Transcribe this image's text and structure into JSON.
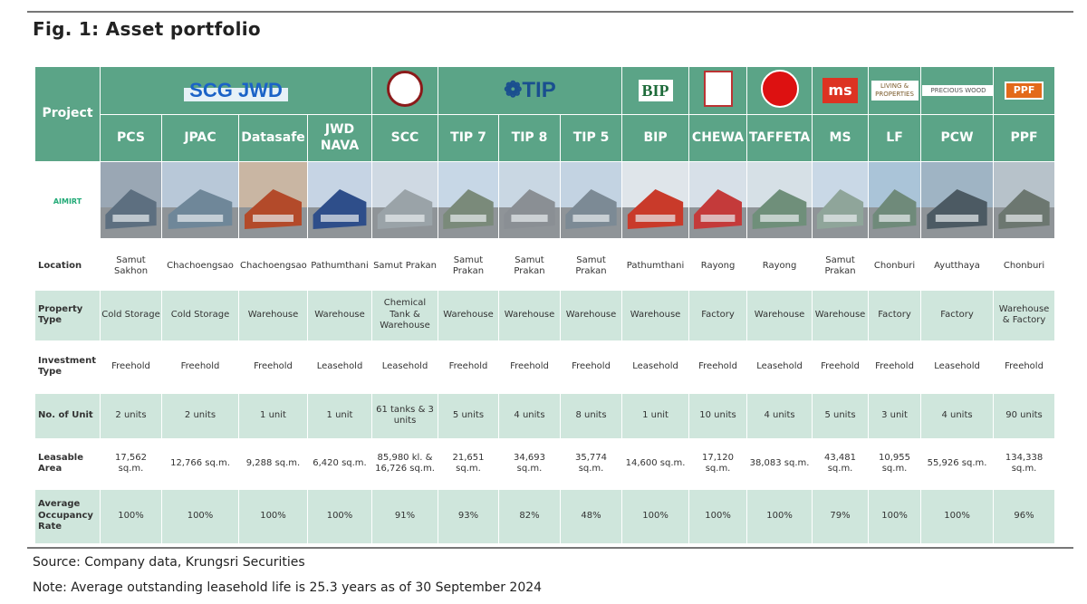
{
  "figure": {
    "title": "Fig. 1:  Asset portfolio",
    "source": "Source: Company data, Krungsri Securities",
    "note": "Note: Average outstanding leasehold life is 25.3 years as of 30 September 2024"
  },
  "logos": {
    "scgjwd": "SCG JWD",
    "tip": "TIP",
    "bip": "BIP",
    "ms": "ms",
    "lf": "LIVING & PROPERTIES",
    "pcw": "PRECIOUS WOOD",
    "ppf": "PPF",
    "aimirt": "AIMIRT"
  },
  "table": {
    "project_label": "Project",
    "projects": [
      "PCS",
      "JPAC",
      "Datasafe",
      "JWD NAVA",
      "SCC",
      "TIP 7",
      "TIP 8",
      "TIP 5",
      "BIP",
      "CHEWA",
      "TAFFETA",
      "MS",
      "LF",
      "PCW",
      "PPF"
    ],
    "rows": [
      {
        "label": "Location",
        "values": [
          "Samut Sakhon",
          "Chachoengsao",
          "Chachoengsao",
          "Pathumthani",
          "Samut Prakan",
          "Samut Prakan",
          "Samut Prakan",
          "Samut Prakan",
          "Pathumthani",
          "Rayong",
          "Rayong",
          "Samut Prakan",
          "Chonburi",
          "Ayutthaya",
          "Chonburi"
        ]
      },
      {
        "label": "Property Type",
        "values": [
          "Cold Storage",
          "Cold Storage",
          "Warehouse",
          "Warehouse",
          "Chemical Tank & Warehouse",
          "Warehouse",
          "Warehouse",
          "Warehouse",
          "Warehouse",
          "Factory",
          "Warehouse",
          "Warehouse",
          "Factory",
          "Factory",
          "Warehouse & Factory"
        ]
      },
      {
        "label": "Investment Type",
        "values": [
          "Freehold",
          "Freehold",
          "Freehold",
          "Leasehold",
          "Leasehold",
          "Freehold",
          "Freehold",
          "Freehold",
          "Leasehold",
          "Freehold",
          "Leasehold",
          "Freehold",
          "Freehold",
          "Leasehold",
          "Freehold"
        ]
      },
      {
        "label": "No. of Unit",
        "values": [
          "2 units",
          "2 units",
          "1 unit",
          "1 unit",
          "61 tanks & 3 units",
          "5 units",
          "4 units",
          "8 units",
          "1 unit",
          "10 units",
          "4 units",
          "5 units",
          "3 unit",
          "4 units",
          "90 units"
        ]
      },
      {
        "label": "Leasable Area",
        "values": [
          "17,562 sq.m.",
          "12,766 sq.m.",
          "9,288 sq.m.",
          "6,420 sq.m.",
          "85,980 kl. & 16,726 sq.m.",
          "21,651 sq.m.",
          "34,693 sq.m.",
          "35,774 sq.m.",
          "14,600 sq.m.",
          "17,120 sq.m.",
          "38,083 sq.m.",
          "43,481 sq.m.",
          "10,955 sq.m.",
          "55,926 sq.m.",
          "134,338 sq.m."
        ]
      },
      {
        "label": "Average Occupancy Rate",
        "values": [
          "100%",
          "100%",
          "100%",
          "100%",
          "91%",
          "93%",
          "82%",
          "48%",
          "100%",
          "100%",
          "100%",
          "79%",
          "100%",
          "100%",
          "96%"
        ]
      }
    ]
  },
  "colors": {
    "header": "#5ba487",
    "band": "#cfe6dc"
  }
}
